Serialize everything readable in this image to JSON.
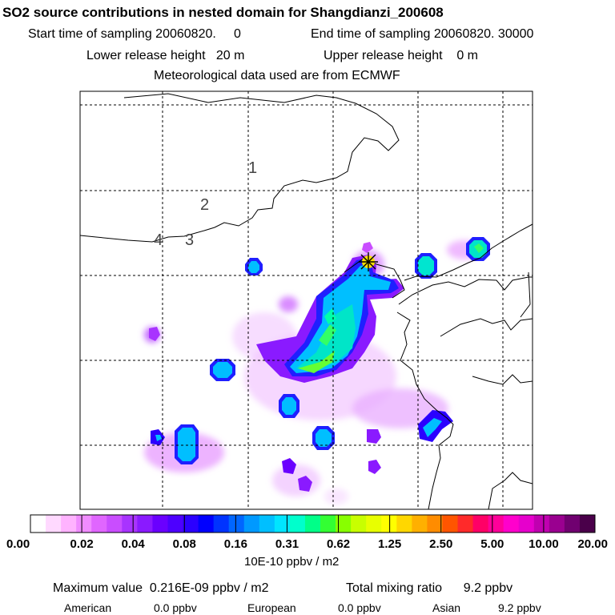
{
  "header": {
    "title": "SO2 source contributions in nested domain for Shangdianzi_200608",
    "start": "Start time of sampling 20060820.     0",
    "end": "End time of sampling 20060820. 30000",
    "lower": "Lower release height   20 m",
    "upper": "Upper release height    0 m",
    "met": "Meteorological data used are from ECMWF"
  },
  "map": {
    "contour_labels": [
      "1",
      "2",
      "3",
      "4"
    ],
    "receptor_marker": "star-icon"
  },
  "chart_data": {
    "type": "heatmap",
    "title": "SO2 source contributions in nested domain for Shangdianzi_200608",
    "colorbar": {
      "ticks": [
        "0.00",
        "0.02",
        "0.04",
        "0.08",
        "0.16",
        "0.31",
        "0.62",
        "1.25",
        "2.50",
        "5.00",
        "10.00",
        "20.00"
      ],
      "colors": [
        "#ffffff",
        "#ffd9ff",
        "#ffb3ff",
        "#f08cff",
        "#e066ff",
        "#c94dff",
        "#a833ff",
        "#8a1aff",
        "#6a00ff",
        "#4d00ff",
        "#2b00ff",
        "#0000ff",
        "#0033ff",
        "#0066ff",
        "#0099ff",
        "#00bfff",
        "#00e5ff",
        "#00ffcc",
        "#00ff88",
        "#33ff33",
        "#88ff00",
        "#c8ff00",
        "#e8ff00",
        "#ffff00",
        "#ffd700",
        "#ffb000",
        "#ff8c00",
        "#ff5500",
        "#ff2a2a",
        "#ff0066",
        "#ff0099",
        "#ff00cc",
        "#e600cc",
        "#c000b0",
        "#9a0090",
        "#700070",
        "#4a004a"
      ],
      "unit": "10E-10 ppbv / m2"
    },
    "summary": {
      "max": "Maximum value  0.216E-09 ppbv / m2",
      "total": "Total mixing ratio      9.2 ppbv",
      "american_label": "American",
      "american_value": "0.0 ppbv",
      "european_label": "European",
      "european_value": "0.0 ppbv",
      "asian_label": "Asian",
      "asian_value": "9.2 ppbv"
    }
  }
}
